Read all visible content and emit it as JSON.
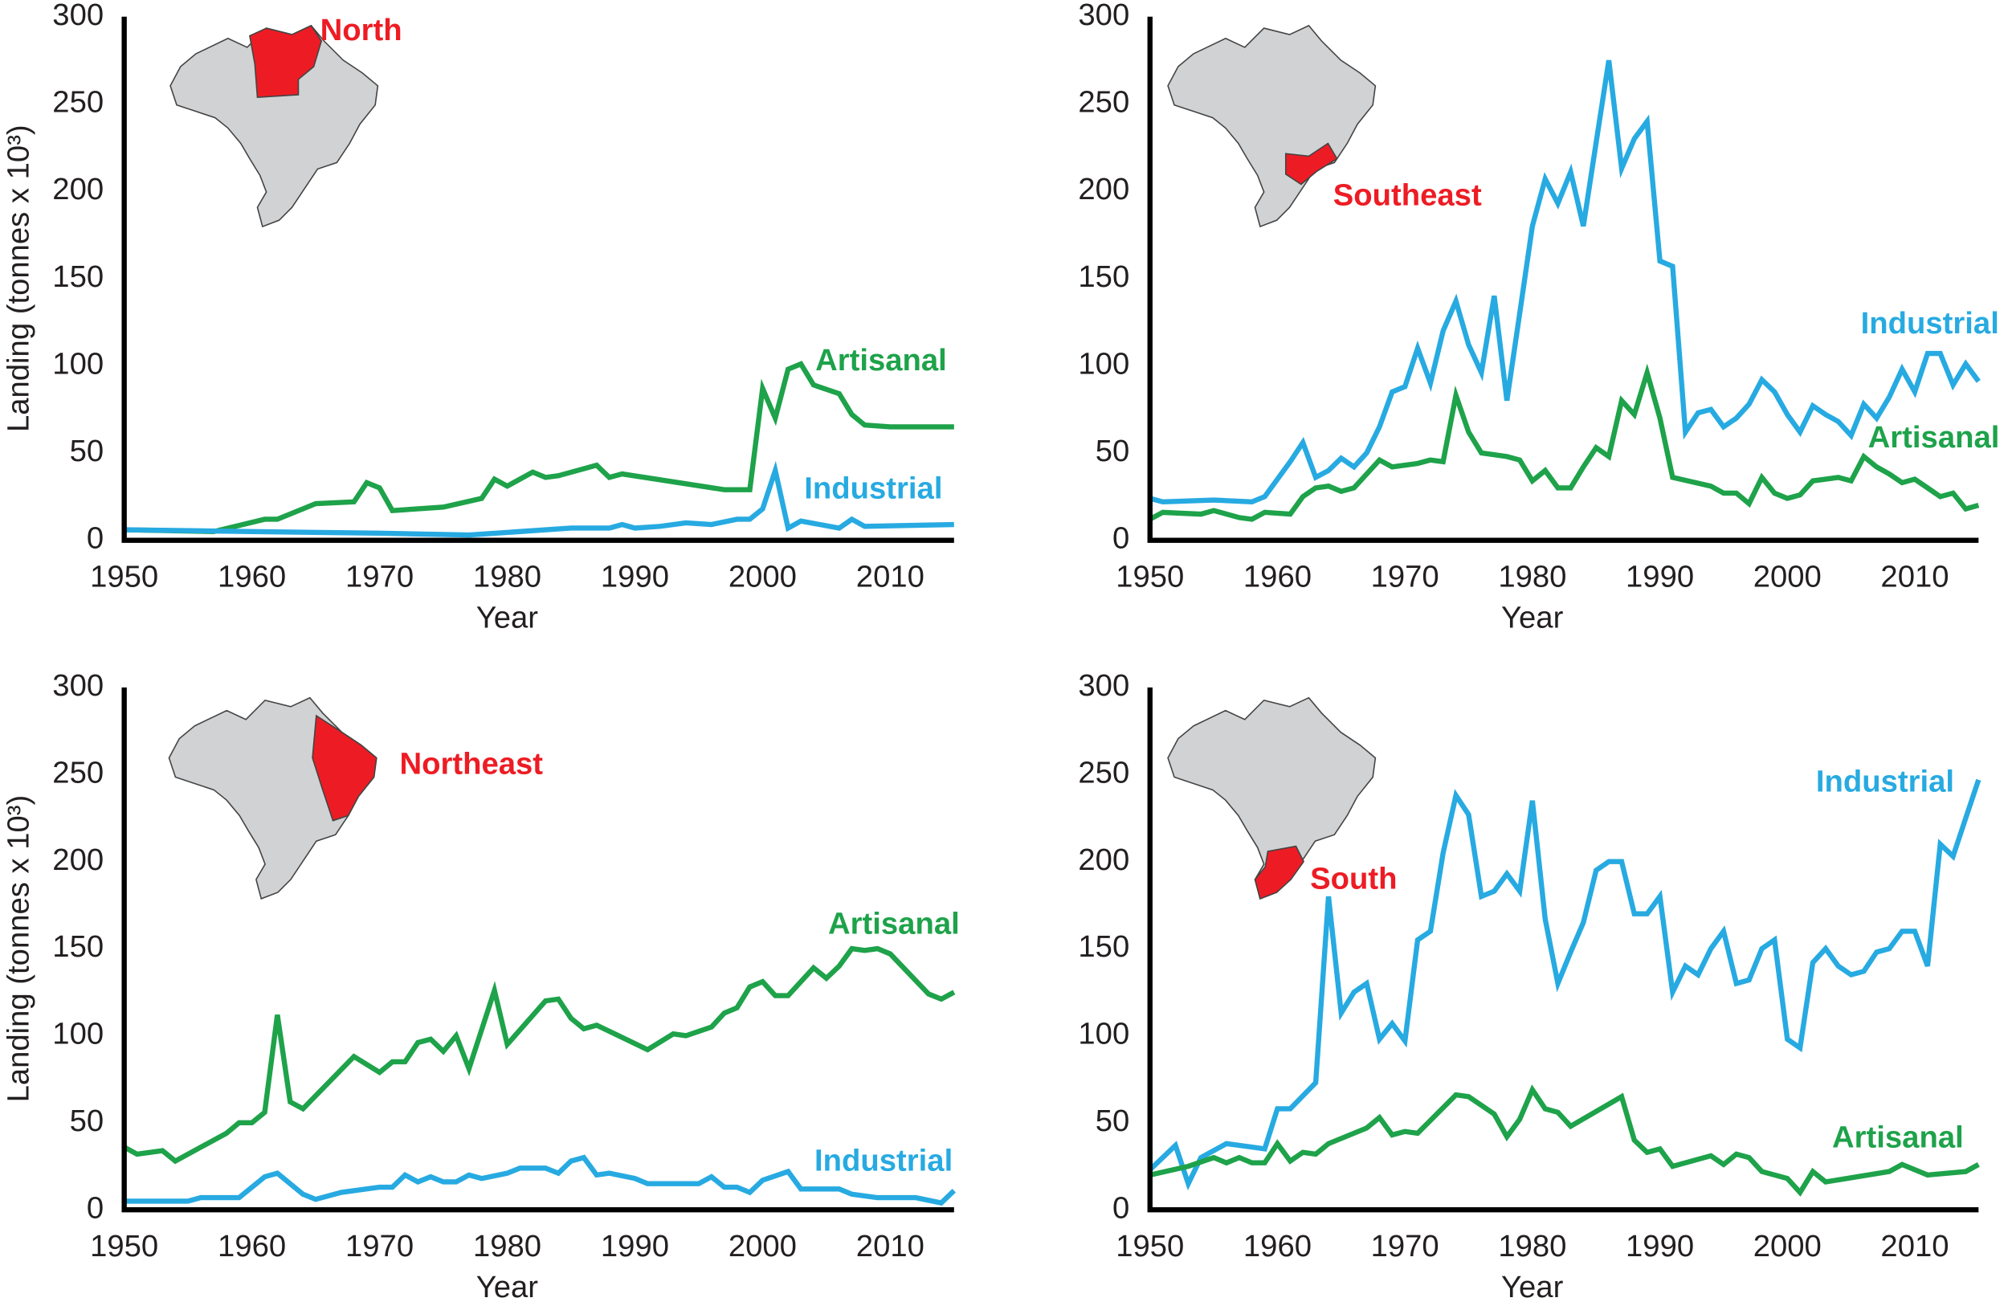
{
  "chart_data": [
    {
      "type": "line",
      "annotation": "North",
      "xlabel": "Year",
      "ylabel": "Landing (tonnes x 10³)",
      "xlim": [
        1950,
        2015
      ],
      "ylim": [
        0,
        300
      ],
      "xticks": [
        1950,
        1960,
        1970,
        1980,
        1990,
        2000,
        2010
      ],
      "yticks": [
        0,
        50,
        100,
        150,
        200,
        250,
        300
      ],
      "series": [
        {
          "name": "Artisanal",
          "color": "#1ea24a",
          "x": [
            1950,
            1957,
            1961,
            1962,
            1965,
            1968,
            1969,
            1970,
            1971,
            1975,
            1978,
            1979,
            1980,
            1982,
            1983,
            1984,
            1987,
            1988,
            1989,
            1997,
            1999,
            2000,
            2001,
            2002,
            2003,
            2004,
            2006,
            2007,
            2008,
            2010,
            2015
          ],
          "values": [
            6,
            5,
            12,
            12,
            21,
            22,
            33,
            30,
            17,
            19,
            24,
            35,
            31,
            39,
            36,
            37,
            43,
            36,
            38,
            29,
            29,
            87,
            70,
            98,
            101,
            89,
            84,
            72,
            66,
            65,
            65
          ]
        },
        {
          "name": "Industrial",
          "color": "#27aae1",
          "x": [
            1950,
            1960,
            1970,
            1977,
            1985,
            1988,
            1989,
            1990,
            1992,
            1994,
            1996,
            1998,
            1999,
            2000,
            2001,
            2002,
            2003,
            2006,
            2007,
            2008,
            2015
          ],
          "values": [
            6,
            5,
            4,
            3,
            7,
            7,
            9,
            7,
            8,
            10,
            9,
            12,
            12,
            18,
            40,
            7,
            11,
            7,
            12,
            8,
            9
          ]
        }
      ]
    },
    {
      "type": "line",
      "annotation": "Southeast",
      "xlabel": "Year",
      "xlim": [
        1950,
        2015
      ],
      "ylim": [
        0,
        300
      ],
      "xticks": [
        1950,
        1960,
        1970,
        1980,
        1990,
        2000,
        2010
      ],
      "yticks": [
        0,
        50,
        100,
        150,
        200,
        250,
        300
      ],
      "series": [
        {
          "name": "Industrial",
          "color": "#27aae1",
          "x": [
            1950,
            1951,
            1955,
            1958,
            1959,
            1961,
            1962,
            1963,
            1964,
            1965,
            1966,
            1967,
            1968,
            1969,
            1970,
            1971,
            1972,
            1973,
            1974,
            1975,
            1976,
            1977,
            1978,
            1979,
            1980,
            1981,
            1982,
            1983,
            1984,
            1985,
            1986,
            1987,
            1988,
            1989,
            1990,
            1991,
            1992,
            1993,
            1994,
            1995,
            1996,
            1997,
            1998,
            1999,
            2000,
            2001,
            2002,
            2003,
            2004,
            2005,
            2006,
            2007,
            2008,
            2009,
            2010,
            2011,
            2012,
            2013,
            2014,
            2015
          ],
          "values": [
            24,
            22,
            23,
            22,
            25,
            45,
            56,
            36,
            40,
            47,
            42,
            50,
            65,
            85,
            88,
            110,
            90,
            120,
            137,
            112,
            96,
            140,
            80,
            130,
            180,
            207,
            193,
            211,
            180,
            228,
            275,
            213,
            230,
            240,
            160,
            157,
            62,
            73,
            75,
            65,
            70,
            78,
            92,
            85,
            72,
            62,
            77,
            72,
            68,
            60,
            78,
            70,
            82,
            98,
            85,
            107,
            107,
            89,
            101,
            91
          ]
        },
        {
          "name": "Artisanal",
          "color": "#1ea24a",
          "x": [
            1950,
            1951,
            1954,
            1955,
            1957,
            1958,
            1959,
            1961,
            1962,
            1963,
            1964,
            1965,
            1966,
            1968,
            1969,
            1971,
            1972,
            1973,
            1974,
            1975,
            1976,
            1978,
            1979,
            1980,
            1981,
            1982,
            1983,
            1984,
            1985,
            1986,
            1987,
            1988,
            1989,
            1990,
            1991,
            1994,
            1995,
            1996,
            1997,
            1998,
            1999,
            2000,
            2001,
            2002,
            2003,
            2004,
            2005,
            2006,
            2007,
            2008,
            2009,
            2010,
            2011,
            2012,
            2013,
            2014,
            2015
          ],
          "values": [
            12,
            16,
            15,
            17,
            13,
            12,
            16,
            15,
            25,
            30,
            31,
            28,
            30,
            46,
            42,
            44,
            46,
            45,
            83,
            62,
            50,
            48,
            46,
            34,
            40,
            30,
            30,
            42,
            53,
            48,
            80,
            72,
            96,
            70,
            36,
            31,
            27,
            27,
            21,
            36,
            27,
            24,
            26,
            34,
            35,
            36,
            34,
            48,
            42,
            38,
            33,
            35,
            30,
            25,
            27,
            18,
            20
          ]
        }
      ]
    },
    {
      "type": "line",
      "annotation": "Northeast",
      "xlabel": "Year",
      "ylabel": "Landing (tonnes x 10³)",
      "xlim": [
        1950,
        2015
      ],
      "ylim": [
        0,
        300
      ],
      "xticks": [
        1950,
        1960,
        1970,
        1980,
        1990,
        2000,
        2010
      ],
      "yticks": [
        0,
        50,
        100,
        150,
        200,
        250,
        300
      ],
      "series": [
        {
          "name": "Artisanal",
          "color": "#1ea24a",
          "x": [
            1950,
            1951,
            1953,
            1954,
            1958,
            1959,
            1960,
            1961,
            1962,
            1963,
            1964,
            1968,
            1970,
            1971,
            1972,
            1973,
            1974,
            1975,
            1976,
            1977,
            1979,
            1980,
            1983,
            1984,
            1985,
            1986,
            1987,
            1991,
            1993,
            1994,
            1996,
            1997,
            1998,
            1999,
            2000,
            2001,
            2002,
            2004,
            2005,
            2006,
            2007,
            2008,
            2009,
            2010,
            2013,
            2014,
            2015
          ],
          "values": [
            36,
            32,
            34,
            28,
            44,
            50,
            50,
            56,
            112,
            62,
            58,
            88,
            79,
            85,
            85,
            96,
            98,
            91,
            100,
            81,
            126,
            95,
            120,
            121,
            110,
            104,
            106,
            92,
            101,
            100,
            105,
            113,
            116,
            128,
            131,
            123,
            123,
            139,
            133,
            140,
            150,
            149,
            150,
            147,
            124,
            121,
            125
          ]
        },
        {
          "name": "Industrial",
          "color": "#27aae1",
          "x": [
            1950,
            1955,
            1956,
            1959,
            1961,
            1962,
            1964,
            1965,
            1967,
            1970,
            1971,
            1972,
            1973,
            1974,
            1975,
            1976,
            1977,
            1978,
            1980,
            1981,
            1983,
            1984,
            1985,
            1986,
            1987,
            1988,
            1990,
            1991,
            1995,
            1996,
            1997,
            1998,
            1999,
            2000,
            2002,
            2003,
            2006,
            2007,
            2009,
            2012,
            2014,
            2015
          ],
          "values": [
            5,
            5,
            7,
            7,
            19,
            21,
            9,
            6,
            10,
            13,
            13,
            20,
            16,
            19,
            16,
            16,
            20,
            18,
            21,
            24,
            24,
            21,
            28,
            30,
            20,
            21,
            18,
            15,
            15,
            19,
            13,
            13,
            10,
            17,
            22,
            12,
            12,
            9,
            7,
            7,
            4,
            11
          ]
        }
      ]
    },
    {
      "type": "line",
      "annotation": "South",
      "xlabel": "Year",
      "xlim": [
        1950,
        2015
      ],
      "ylim": [
        0,
        300
      ],
      "xticks": [
        1950,
        1960,
        1970,
        1980,
        1990,
        2000,
        2010
      ],
      "yticks": [
        0,
        50,
        100,
        150,
        200,
        250,
        300
      ],
      "series": [
        {
          "name": "Industrial",
          "color": "#27aae1",
          "x": [
            1950,
            1952,
            1953,
            1954,
            1956,
            1958,
            1959,
            1960,
            1961,
            1963,
            1964,
            1965,
            1966,
            1967,
            1968,
            1969,
            1970,
            1971,
            1972,
            1973,
            1974,
            1975,
            1976,
            1977,
            1978,
            1979,
            1980,
            1981,
            1982,
            1983,
            1984,
            1985,
            1986,
            1987,
            1988,
            1989,
            1990,
            1991,
            1992,
            1993,
            1994,
            1995,
            1996,
            1997,
            1998,
            1999,
            2000,
            2001,
            2002,
            2003,
            2004,
            2005,
            2006,
            2007,
            2008,
            2009,
            2010,
            2011,
            2012,
            2013,
            2014,
            2015
          ],
          "values": [
            23,
            37,
            15,
            30,
            38,
            36,
            35,
            58,
            58,
            73,
            180,
            113,
            125,
            130,
            98,
            107,
            97,
            155,
            160,
            205,
            238,
            227,
            180,
            183,
            193,
            183,
            235,
            167,
            130,
            148,
            165,
            195,
            200,
            200,
            170,
            170,
            180,
            125,
            140,
            135,
            150,
            160,
            130,
            132,
            150,
            155,
            98,
            93,
            142,
            150,
            140,
            135,
            137,
            148,
            150,
            160,
            160,
            140,
            210,
            203,
            225,
            247
          ]
        },
        {
          "name": "Artisanal",
          "color": "#1ea24a",
          "x": [
            1950,
            1953,
            1955,
            1956,
            1957,
            1958,
            1959,
            1960,
            1961,
            1962,
            1963,
            1964,
            1967,
            1968,
            1969,
            1970,
            1971,
            1974,
            1975,
            1977,
            1978,
            1979,
            1980,
            1981,
            1982,
            1983,
            1987,
            1988,
            1989,
            1990,
            1991,
            1994,
            1995,
            1996,
            1997,
            1998,
            2000,
            2001,
            2002,
            2003,
            2008,
            2009,
            2011,
            2014,
            2015
          ],
          "values": [
            20,
            25,
            30,
            27,
            30,
            27,
            27,
            38,
            28,
            33,
            32,
            38,
            47,
            53,
            43,
            45,
            44,
            66,
            65,
            55,
            42,
            52,
            69,
            58,
            56,
            48,
            65,
            40,
            33,
            35,
            25,
            31,
            26,
            32,
            30,
            22,
            18,
            10,
            22,
            16,
            22,
            26,
            20,
            22,
            26
          ]
        }
      ]
    }
  ]
}
